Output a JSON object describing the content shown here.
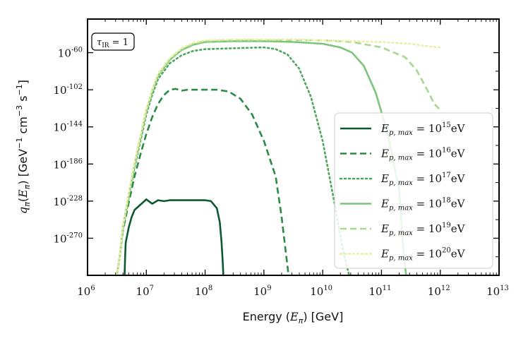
{
  "chart_data": {
    "type": "line",
    "xlabel": "Energy (E_π) [GeV]",
    "xlabel_parts": {
      "pre": "Energy (",
      "var": "E",
      "sub": "π",
      "post": ") [GeV]"
    },
    "ylabel": "q_π(E_π) [GeV^-1 cm^-3 s^-1]",
    "ylabel_parts": {
      "func": "q",
      "func_sub": "π",
      "arg": "E",
      "arg_sub": "π",
      "units": "[GeV",
      "u1": "−1",
      "u_cm": " cm",
      "u2": "−3",
      "u_s": " s",
      "u3": "−1",
      "close": "]"
    },
    "xscale": "log",
    "xlim": [
      6,
      13
    ],
    "ylim": [
      -312,
      -22
    ],
    "x_ticks": [
      {
        "base": "10",
        "exp": "6",
        "v": 6
      },
      {
        "base": "10",
        "exp": "7",
        "v": 7
      },
      {
        "base": "10",
        "exp": "8",
        "v": 8
      },
      {
        "base": "10",
        "exp": "9",
        "v": 9
      },
      {
        "base": "10",
        "exp": "10",
        "v": 10
      },
      {
        "base": "10",
        "exp": "11",
        "v": 11
      },
      {
        "base": "10",
        "exp": "12",
        "v": 12
      },
      {
        "base": "10",
        "exp": "13",
        "v": 13
      }
    ],
    "y_ticks": [
      {
        "base": "10",
        "exp": "-60",
        "v": -60
      },
      {
        "base": "10",
        "exp": "-102",
        "v": -102
      },
      {
        "base": "10",
        "exp": "-144",
        "v": -144
      },
      {
        "base": "10",
        "exp": "-186",
        "v": -186
      },
      {
        "base": "10",
        "exp": "-228",
        "v": -228
      },
      {
        "base": "10",
        "exp": "-270",
        "v": -270
      }
    ],
    "annotation": {
      "symbol": "τ",
      "sub": "IR",
      "rest": " = 1"
    },
    "legend_position": "lower-right",
    "series": [
      {
        "name": "E_p,max = 10^15 eV",
        "label_pre": "E",
        "label_sub": "p, max",
        "label_mid": " = 10",
        "label_sup": "15",
        "label_post": "eV",
        "color": "#0b5a2e",
        "dash": "solid",
        "x": [
          6.63,
          6.64,
          6.65,
          6.7,
          6.75,
          6.8,
          6.9,
          7.0,
          7.1,
          7.2,
          7.3,
          7.4,
          7.5,
          7.7,
          7.9,
          8.0,
          8.1,
          8.2,
          8.25,
          8.28,
          8.3,
          8.31
        ],
        "y": [
          -312,
          -290,
          -275,
          -258,
          -246,
          -238,
          -232,
          -226,
          -231,
          -227,
          -228,
          -227,
          -227,
          -227,
          -227,
          -227,
          -228,
          -236,
          -252,
          -275,
          -298,
          -312
        ]
      },
      {
        "name": "E_p,max = 10^16 eV",
        "label_pre": "E",
        "label_sub": "p, max",
        "label_mid": " = 10",
        "label_sup": "16",
        "label_post": "eV",
        "color": "#2b8a43",
        "dash": "dashed",
        "x": [
          6.5,
          6.55,
          6.6,
          6.7,
          6.8,
          6.9,
          7.0,
          7.1,
          7.2,
          7.3,
          7.4,
          7.5,
          7.6,
          7.7,
          7.8,
          8.0,
          8.2,
          8.4,
          8.6,
          8.8,
          9.0,
          9.2,
          9.3,
          9.38,
          9.42
        ],
        "y": [
          -312,
          -290,
          -262,
          -230,
          -200,
          -175,
          -152,
          -133,
          -118,
          -108,
          -102,
          -101,
          -103,
          -102,
          -102,
          -102,
          -102,
          -104,
          -112,
          -130,
          -160,
          -200,
          -245,
          -290,
          -312
        ]
      },
      {
        "name": "E_p,max = 10^17 eV",
        "label_pre": "E",
        "label_sub": "p, max",
        "label_mid": " = 10",
        "label_sup": "17",
        "label_post": "eV",
        "color": "#4ea65a",
        "dash": "dotted",
        "x": [
          6.5,
          6.55,
          6.6,
          6.7,
          6.8,
          6.9,
          7.0,
          7.1,
          7.2,
          7.4,
          7.6,
          7.8,
          8.0,
          8.5,
          9.0,
          9.2,
          9.4,
          9.6,
          9.8,
          10.0,
          10.2,
          10.35,
          10.45
        ],
        "y": [
          -312,
          -290,
          -260,
          -225,
          -190,
          -160,
          -130,
          -108,
          -90,
          -72,
          -63,
          -58,
          -56,
          -55,
          -54,
          -56,
          -62,
          -78,
          -110,
          -160,
          -230,
          -285,
          -312
        ]
      },
      {
        "name": "E_p,max = 10^18 eV",
        "label_pre": "E",
        "label_sub": "p, max",
        "label_mid": " = 10",
        "label_sup": "18",
        "label_post": "eV",
        "color": "#7cc47b",
        "dash": "solid",
        "x": [
          6.5,
          6.55,
          6.6,
          6.7,
          6.8,
          6.9,
          7.0,
          7.1,
          7.2,
          7.4,
          7.6,
          7.8,
          8.0,
          8.5,
          9.0,
          9.5,
          10.0,
          10.3,
          10.5,
          10.7,
          10.9,
          11.1,
          11.3,
          11.38,
          11.42
        ],
        "y": [
          -312,
          -290,
          -258,
          -222,
          -187,
          -156,
          -126,
          -104,
          -86,
          -68,
          -57,
          -51,
          -48,
          -47,
          -47,
          -48,
          -50,
          -54,
          -60,
          -75,
          -105,
          -150,
          -215,
          -290,
          -312
        ]
      },
      {
        "name": "E_p,max = 10^19 eV",
        "label_pre": "E",
        "label_sub": "p, max",
        "label_mid": " = 10",
        "label_sup": "19",
        "label_post": "eV",
        "color": "#a6d890",
        "dash": "dashed",
        "x": [
          6.5,
          6.55,
          6.6,
          6.7,
          6.8,
          6.9,
          7.0,
          7.1,
          7.2,
          7.4,
          7.6,
          7.8,
          8.0,
          8.5,
          9.0,
          9.5,
          10.0,
          10.5,
          11.0,
          11.4,
          11.6,
          11.8,
          11.9,
          12.0
        ],
        "y": [
          -312,
          -290,
          -258,
          -221,
          -186,
          -155,
          -125,
          -103,
          -85,
          -67,
          -56,
          -50,
          -47,
          -46,
          -46,
          -46,
          -46,
          -48,
          -54,
          -65,
          -80,
          -105,
          -118,
          -125
        ]
      },
      {
        "name": "E_p,max = 10^20 eV",
        "label_pre": "E",
        "label_sub": "p, max",
        "label_mid": " = 10",
        "label_sup": "20",
        "label_post": "eV",
        "color": "#ebeea5",
        "dash": "dotted",
        "x": [
          6.5,
          6.55,
          6.6,
          6.7,
          6.8,
          6.9,
          7.0,
          7.1,
          7.2,
          7.4,
          7.6,
          7.8,
          8.0,
          8.5,
          9.0,
          9.5,
          10.0,
          10.5,
          11.0,
          11.5,
          11.8,
          12.0
        ],
        "y": [
          -312,
          -290,
          -257,
          -220,
          -185,
          -154,
          -124,
          -102,
          -84,
          -66,
          -55,
          -49,
          -46,
          -45,
          -45,
          -45,
          -46,
          -47,
          -48,
          -50,
          -53,
          -54
        ]
      }
    ]
  }
}
